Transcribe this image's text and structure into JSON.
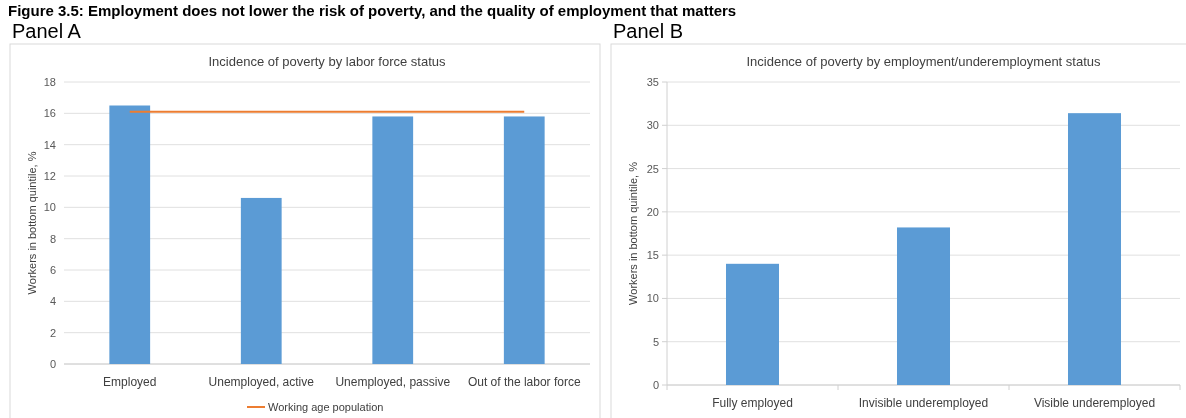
{
  "chart_data": [
    {
      "type": "bar",
      "title": "Panel A",
      "subtitle": "Incidence of poverty by labor force status",
      "annotations": [
        "Figure 3.5: Employment does not lower the risk of poverty, and the quality of employment that matters"
      ],
      "ylabel": "Workers in bottom quintile, %",
      "categories": [
        "Employed",
        "Unemployed, active",
        "Unemployed, passive",
        "Out of the labor force"
      ],
      "series": [
        {
          "color": "#5b9bd5",
          "values": [
            16.5,
            10.6,
            15.8,
            15.8
          ]
        },
        {
          "type": "line",
          "name": "Working age population",
          "color": "#ed7d31",
          "values": [
            16.1,
            16.1,
            16.1,
            16.1
          ]
        }
      ],
      "ylim": [
        0,
        18
      ],
      "yticks": [
        0,
        2,
        4,
        6,
        8,
        10,
        12,
        14,
        16,
        18
      ],
      "grid": "y",
      "legend": "bottom"
    },
    {
      "type": "bar",
      "title": "Panel B",
      "subtitle": "Incidence of poverty by employment/underemployment status",
      "ylabel": "Workers in bottom quintile, %",
      "categories": [
        "Fully employed",
        "Invisible underemployed",
        "Visible underemployed"
      ],
      "series": [
        {
          "color": "#5b9bd5",
          "values": [
            14.0,
            18.2,
            31.4
          ]
        }
      ],
      "ylim": [
        0,
        35
      ],
      "yticks": [
        0,
        5,
        10,
        15,
        20,
        25,
        30,
        35
      ],
      "grid": "y"
    }
  ]
}
